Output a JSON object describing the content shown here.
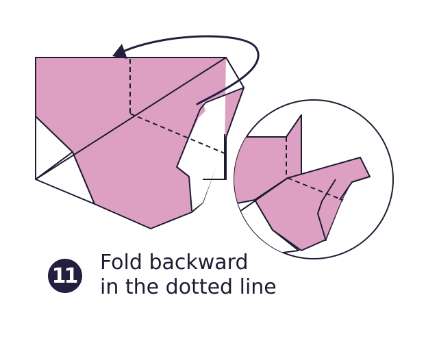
{
  "colors": {
    "paper_pink": "#dda0c2",
    "outline": "#1d1b30",
    "arrow": "#221f3f",
    "badge_bg": "#221f3f",
    "badge_text": "#ffffff",
    "background": "#ffffff"
  },
  "step": {
    "number": "11"
  },
  "instruction": {
    "line1": "Fold backward",
    "line2": "in the dotted line"
  },
  "icons": {
    "fold_arrow": "curved-arrow-backward",
    "fold_line": "dashed-valley-line"
  }
}
